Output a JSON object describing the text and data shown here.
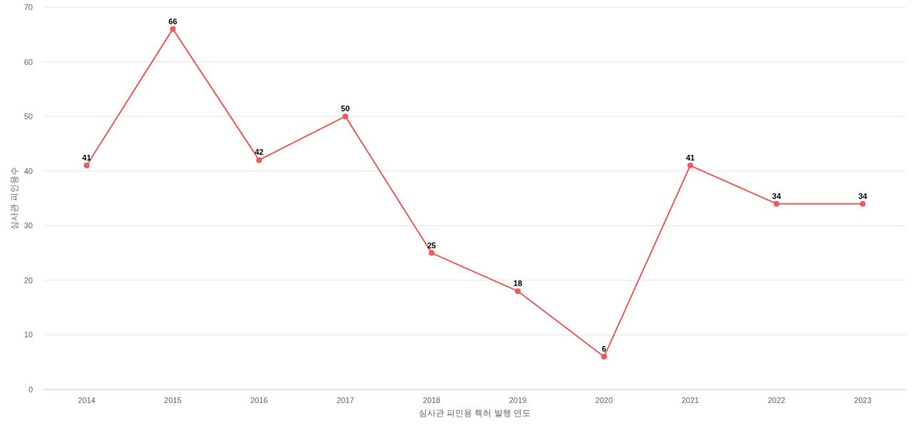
{
  "chart_data": {
    "type": "line",
    "xlabel": "심사관 피인용 특허 발행 연도",
    "ylabel": "심사관 피인용수",
    "categories": [
      "2014",
      "2015",
      "2016",
      "2017",
      "2018",
      "2019",
      "2020",
      "2021",
      "2022",
      "2023"
    ],
    "series": [
      {
        "color": "#f05a5a",
        "values": [
          41,
          66,
          42,
          50,
          25,
          18,
          6,
          41,
          34,
          34
        ]
      }
    ],
    "ylim": [
      0,
      70
    ],
    "yticks": [
      0,
      10,
      20,
      30,
      40,
      50,
      60,
      70
    ],
    "grid": "y",
    "marker": "circle",
    "line_style": "solid",
    "data_labels": true
  }
}
